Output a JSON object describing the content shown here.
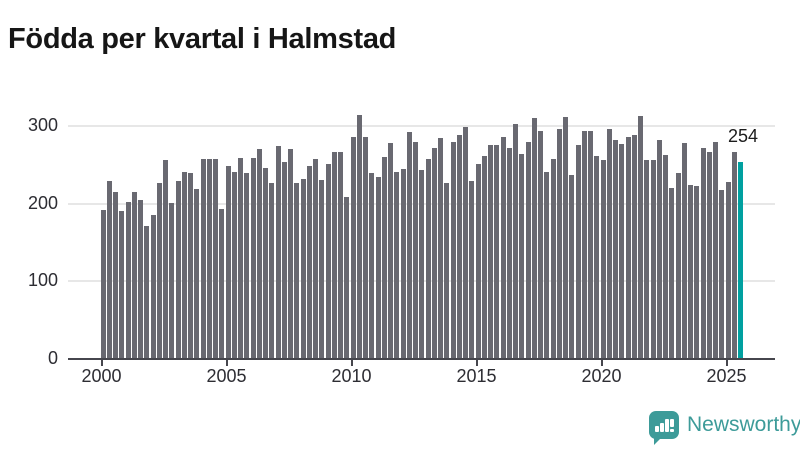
{
  "header": {
    "title": "Födda per kvartal i Halmstad"
  },
  "chart_data": {
    "type": "bar",
    "title": "Födda per kvartal i Halmstad",
    "ylabel": "",
    "xlabel": "",
    "ylim": [
      0,
      320
    ],
    "yticks": [
      0,
      100,
      200,
      300
    ],
    "xticks": [
      "2000",
      "2005",
      "2010",
      "2015",
      "2020",
      "2025"
    ],
    "grid": "horizontal",
    "legend": "none",
    "categories": [
      "2000 Q1",
      "2000 Q2",
      "2000 Q3",
      "2000 Q4",
      "2001 Q1",
      "2001 Q2",
      "2001 Q3",
      "2001 Q4",
      "2002 Q1",
      "2002 Q2",
      "2002 Q3",
      "2002 Q4",
      "2003 Q1",
      "2003 Q2",
      "2003 Q3",
      "2003 Q4",
      "2004 Q1",
      "2004 Q2",
      "2004 Q3",
      "2004 Q4",
      "2005 Q1",
      "2005 Q2",
      "2005 Q3",
      "2005 Q4",
      "2006 Q1",
      "2006 Q2",
      "2006 Q3",
      "2006 Q4",
      "2007 Q1",
      "2007 Q2",
      "2007 Q3",
      "2007 Q4",
      "2008 Q1",
      "2008 Q2",
      "2008 Q3",
      "2008 Q4",
      "2009 Q1",
      "2009 Q2",
      "2009 Q3",
      "2009 Q4",
      "2010 Q1",
      "2010 Q2",
      "2010 Q3",
      "2010 Q4",
      "2011 Q1",
      "2011 Q2",
      "2011 Q3",
      "2011 Q4",
      "2012 Q1",
      "2012 Q2",
      "2012 Q3",
      "2012 Q4",
      "2013 Q1",
      "2013 Q2",
      "2013 Q3",
      "2013 Q4",
      "2014 Q1",
      "2014 Q2",
      "2014 Q3",
      "2014 Q4",
      "2015 Q1",
      "2015 Q2",
      "2015 Q3",
      "2015 Q4",
      "2016 Q1",
      "2016 Q2",
      "2016 Q3",
      "2016 Q4",
      "2017 Q1",
      "2017 Q2",
      "2017 Q3",
      "2017 Q4",
      "2018 Q1",
      "2018 Q2",
      "2018 Q3",
      "2018 Q4",
      "2019 Q1",
      "2019 Q2",
      "2019 Q3",
      "2019 Q4",
      "2020 Q1",
      "2020 Q2",
      "2020 Q3",
      "2020 Q4",
      "2021 Q1",
      "2021 Q2",
      "2021 Q3",
      "2021 Q4",
      "2022 Q1",
      "2022 Q2",
      "2022 Q3",
      "2022 Q4",
      "2023 Q1",
      "2023 Q2",
      "2023 Q3",
      "2023 Q4",
      "2024 Q1",
      "2024 Q2",
      "2024 Q3",
      "2024 Q4",
      "2025 Q1",
      "2025 Q2",
      "2025 Q3"
    ],
    "values": [
      192,
      229,
      215,
      190,
      202,
      215,
      205,
      171,
      186,
      227,
      256,
      201,
      229,
      241,
      239,
      219,
      258,
      258,
      258,
      193,
      249,
      241,
      259,
      240,
      259,
      271,
      246,
      227,
      274,
      254,
      270,
      226,
      232,
      249,
      257,
      230,
      251,
      266,
      267,
      208,
      286,
      314,
      286,
      239,
      234,
      260,
      278,
      241,
      245,
      292,
      280,
      243,
      257,
      272,
      285,
      227,
      279,
      289,
      299,
      229,
      251,
      262,
      275,
      276,
      286,
      272,
      303,
      264,
      279,
      310,
      293,
      241,
      258,
      296,
      312,
      237,
      275,
      293,
      294,
      261,
      256,
      296,
      282,
      277,
      286,
      289,
      313,
      256,
      256,
      282,
      263,
      220,
      239,
      278,
      224,
      223,
      272,
      266,
      280,
      217,
      228,
      266,
      254
    ],
    "highlight": {
      "category": "2025 Q3",
      "value": 254,
      "label": "254"
    },
    "colors": {
      "bar": "#696971",
      "highlight": "#00a0a0",
      "gridline": "#e7e7e7",
      "axis": "#46464d",
      "tick_text": "#2d2d33"
    }
  },
  "footer": {
    "brand": "Newsworthy",
    "brand_color": "#3d9b99"
  }
}
